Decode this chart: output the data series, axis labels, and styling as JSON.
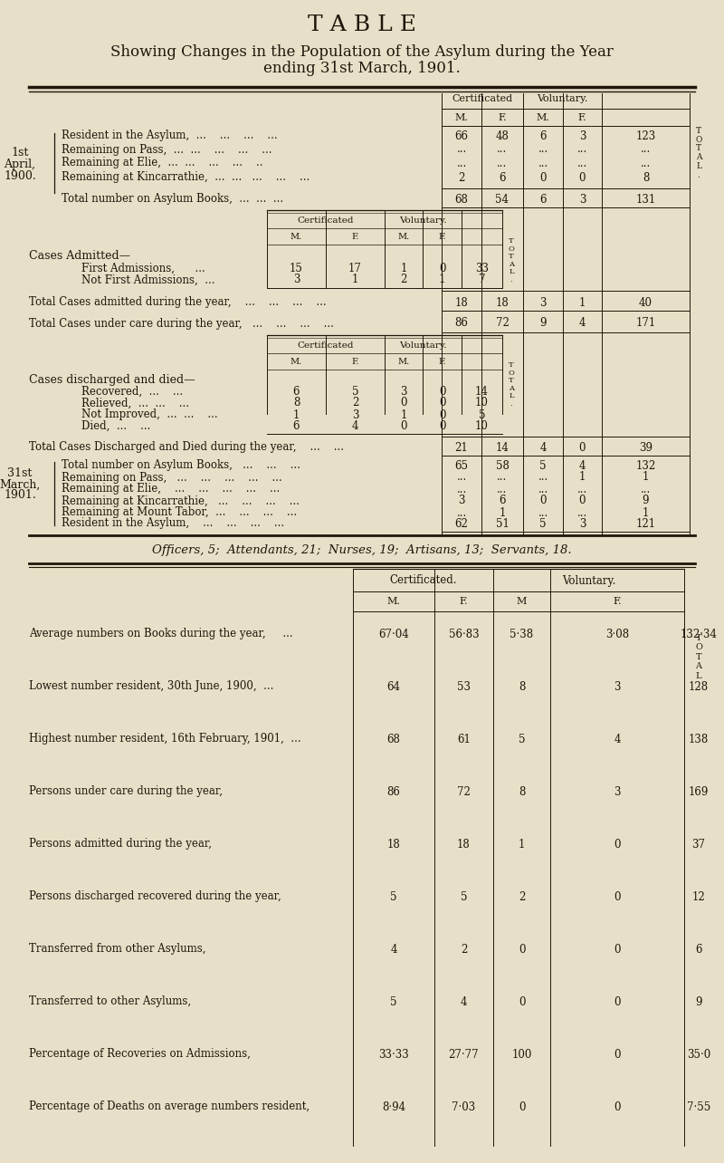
{
  "title": "T A B L E",
  "subtitle1": "Showing Changes in the Population of the Asylum during the Year",
  "subtitle2": "ending 31st March, 1901.",
  "bg_color": "#e8dfc8",
  "text_color": "#1e160a",
  "officers_line": "Officers, 5;  Attendants, 21;  Nurses, 19;  Artisans, 13;  Servants, 18.",
  "section1_rows": [
    {
      "label": "Resident in the Asylum,",
      "dots": "  ...    ...    ...    ...",
      "cm": "66",
      "cf": "48",
      "vm": "6",
      "vf": "3",
      "tot": "123"
    },
    {
      "label": "Remaining on Pass,  ...",
      "dots": "  ...    ...    ...    ...",
      "cm": "...",
      "cf": "...",
      "vm": "...",
      "vf": "...",
      "tot": "..."
    },
    {
      "label": "Remaining at Elie,  ...",
      "dots": "  ...    ...    ...    ..",
      "cm": "...",
      "cf": "...",
      "vm": "...",
      "vf": "...",
      "tot": "..."
    },
    {
      "label": "Remaining at Kincarrathie,  ...",
      "dots": "  ...   ...    ...    ...",
      "cm": "2",
      "cf": "6",
      "vm": "0",
      "vf": "0",
      "tot": "8"
    }
  ],
  "section1_total": {
    "label": "Total number on Asylum Books,  ...  ...  ...",
    "cm": "68",
    "cf": "54",
    "vm": "6",
    "vf": "3",
    "tot": "131"
  },
  "admitted_rows": [
    {
      "label": "First Admissions,",
      "dots": "  ...",
      "cm": "15",
      "cf": "17",
      "vm": "1",
      "vf": "0",
      "tot": "33"
    },
    {
      "label": "Not First Admissions,",
      "dots": "  ...",
      "cm": "3",
      "cf": "1",
      "vm": "2",
      "vf": "1",
      "tot": "7"
    }
  ],
  "total_admitted": {
    "label": "Total Cases admitted during the year,    ...    ...    ...    ...",
    "cm": "18",
    "cf": "18",
    "vm": "3",
    "vf": "1",
    "tot": "40"
  },
  "total_care": {
    "label": "Total Cases under care during the year,   ...    ...    ...    ...",
    "cm": "86",
    "cf": "72",
    "vm": "9",
    "vf": "4",
    "tot": "171"
  },
  "discharged_rows": [
    {
      "label": "Recovered,",
      "dots": "  ...    ...",
      "cm": "6",
      "cf": "5",
      "vm": "3",
      "vf": "0",
      "tot": "14"
    },
    {
      "label": "Relieved,  ...",
      "dots": "  ...    ...",
      "cm": "8",
      "cf": "2",
      "vm": "0",
      "vf": "0",
      "tot": "10"
    },
    {
      "label": "Not Improved,  ...",
      "dots": "  ...    ...",
      "cm": "1",
      "cf": "3",
      "vm": "1",
      "vf": "0",
      "tot": "5"
    },
    {
      "label": "Died,",
      "dots": "  ...    ...    ...",
      "cm": "6",
      "cf": "4",
      "vm": "0",
      "vf": "0",
      "tot": "10"
    }
  ],
  "total_discharged": {
    "label": "Total Cases Discharged and Died during the year,    ...    ...",
    "cm": "21",
    "cf": "14",
    "vm": "4",
    "vf": "0",
    "tot": "39"
  },
  "section3_rows": [
    {
      "label": "Total number on Asylum Books,   ...    ...    ...",
      "cm": "65",
      "cf": "58",
      "vm": "5",
      "vf": "4",
      "tot": "132"
    },
    {
      "label": "Remaining on Pass,   ...    ...    ...    ...    ...",
      "cm": "...",
      "cf": "...",
      "vm": "...",
      "vf": "1",
      "tot": "1"
    },
    {
      "label": "Remaining at Elie,    ...    ...    ...    ...    ...",
      "cm": "...",
      "cf": "...",
      "vm": "...",
      "vf": "...",
      "tot": "..."
    },
    {
      "label": "Remaining at Kincarrathie,   ...    ...    ...    ...",
      "cm": "3",
      "cf": "6",
      "vm": "0",
      "vf": "0",
      "tot": "9"
    },
    {
      "label": "Remaining at Mount Tabor,  ...    ...    ...    ...",
      "cm": "...",
      "cf": "1",
      "vm": "...",
      "vf": "...",
      "tot": "1"
    },
    {
      "label": "Resident in the Asylum,    ...    ...    ...    ...",
      "cm": "62",
      "cf": "51",
      "vm": "5",
      "vf": "3",
      "tot": "121"
    }
  ],
  "stats_rows": [
    {
      "label": "Average numbers on Books during the year,     ...",
      "cm": "67·04",
      "cf": "56·83",
      "vm": "5·38",
      "vf": "3·08",
      "tot": "132·34"
    },
    {
      "label": "Lowest number resident, 30th June, 1900,  ...",
      "cm": "64",
      "cf": "53",
      "vm": "8",
      "vf": "3",
      "tot": "128"
    },
    {
      "label": "Highest number resident, 16th February, 1901,  ...",
      "cm": "68",
      "cf": "61",
      "vm": "5",
      "vf": "4",
      "tot": "138"
    },
    {
      "label": "Persons under care during the year,",
      "cm": "86",
      "cf": "72",
      "vm": "8",
      "vf": "3",
      "tot": "169"
    },
    {
      "label": "Persons admitted during the year,",
      "cm": "18",
      "cf": "18",
      "vm": "1",
      "vf": "0",
      "tot": "37"
    },
    {
      "label": "Persons discharged recovered during the year,",
      "cm": "5",
      "cf": "5",
      "vm": "2",
      "vf": "0",
      "tot": "12"
    },
    {
      "label": "Transferred from other Asylums,",
      "cm": "4",
      "cf": "2",
      "vm": "0",
      "vf": "0",
      "tot": "6"
    },
    {
      "label": "Transferred to other Asylums,",
      "cm": "5",
      "cf": "4",
      "vm": "0",
      "vf": "0",
      "tot": "9"
    },
    {
      "label": "Percentage of Recoveries on Admissions,",
      "cm": "33·33",
      "cf": "27·77",
      "vm": "100",
      "vf": "0",
      "tot": "35·0"
    },
    {
      "label": "Percentage of Deaths on average numbers resident,",
      "cm": "8·94",
      "cf": "7·03",
      "vm": "0",
      "vf": "0",
      "tot": "7·55"
    }
  ]
}
